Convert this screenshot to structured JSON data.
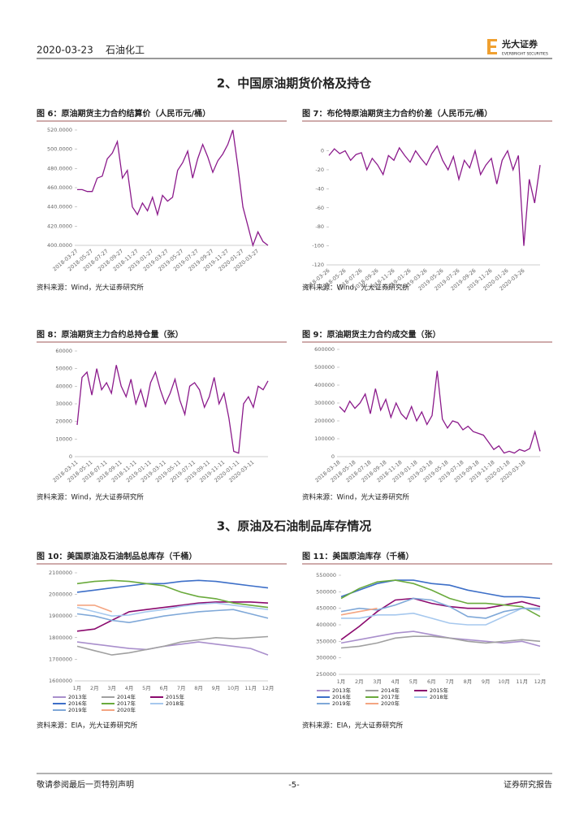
{
  "header": {
    "date": "2020-03-23",
    "sector": "石油化工",
    "brand": "光大证券",
    "brand_en": "EVERBRIGHT SECURITIES"
  },
  "sections": [
    "2、中国原油期货价格及持仓",
    "3、原油及石油制品库存情况"
  ],
  "chart_data": [
    {
      "type": "line",
      "title": "图 6：原油期货主力合约结算价（人民币元/桶）",
      "source": "资料来源：Wind，光大证券研究所",
      "color": "#8b1a8b",
      "categories": [
        "2018-03-27",
        null,
        null,
        "2018-05-27",
        null,
        null,
        "2018-07-27",
        null,
        null,
        "2018-09-27",
        null,
        null,
        "2018-11-27",
        null,
        null,
        "2019-01-27",
        null,
        null,
        "2019-03-27",
        null,
        null,
        "2019-05-27",
        null,
        null,
        "2019-07-27",
        null,
        null,
        "2019-09-27",
        null,
        null,
        "2019-11-27",
        null,
        null,
        "2020-01-27",
        null,
        null,
        "2020-03-27",
        null,
        null
      ],
      "values": [
        458,
        458,
        456,
        456,
        470,
        472,
        490,
        496,
        508,
        470,
        478,
        440,
        432,
        444,
        436,
        450,
        432,
        452,
        446,
        450,
        478,
        486,
        498,
        470,
        490,
        505,
        492,
        476,
        488,
        495,
        505,
        520,
        482,
        440,
        420,
        400,
        414,
        404,
        400
      ],
      "ylim": [
        400,
        520
      ],
      "yticks": [
        {
          "value": 400,
          "label": "400.0000"
        },
        {
          "value": 420,
          "label": "420.0000"
        },
        {
          "value": 440,
          "label": "440.0000"
        },
        {
          "value": 460,
          "label": "460.0000"
        },
        {
          "value": 480,
          "label": "480.0000"
        },
        {
          "value": 500,
          "label": "500.0000"
        },
        {
          "value": 520,
          "label": "520.0000"
        }
      ]
    },
    {
      "type": "line",
      "title": "图 7：布伦特原油期货主力合约价差（人民币元/桶）",
      "source": "资料来源：Wind，光大证券研究所",
      "color": "#8b1a8b",
      "categories": [
        "2018-03-26",
        null,
        null,
        "2018-05-26",
        null,
        null,
        "2018-07-26",
        null,
        null,
        "2018-09-26",
        null,
        null,
        "2018-11-26",
        null,
        null,
        "2019-01-26",
        null,
        null,
        "2019-03-26",
        null,
        null,
        "2019-05-26",
        null,
        null,
        "2019-07-26",
        null,
        null,
        "2019-09-26",
        null,
        null,
        "2019-11-26",
        null,
        null,
        "2020-01-26",
        null,
        null,
        "2020-03-26",
        null,
        null,
        null
      ],
      "values": [
        -5,
        2,
        -3,
        0,
        -10,
        -4,
        -2,
        -20,
        -8,
        -15,
        -25,
        -5,
        -10,
        3,
        -5,
        -12,
        0,
        -8,
        -15,
        -3,
        5,
        -10,
        -20,
        -6,
        -30,
        -10,
        -18,
        0,
        -25,
        -15,
        -8,
        -35,
        -10,
        0,
        -20,
        -5,
        -100,
        -30,
        -55,
        -15
      ],
      "ylim": [
        -120,
        15
      ],
      "yticks": [
        -120,
        -100,
        -80,
        -60,
        -40,
        -20,
        0
      ]
    },
    {
      "type": "line",
      "title": "图 8：原油期货主力合约总持仓量（张）",
      "source": "资料来源：Wind，光大证券研究所",
      "color": "#8b1a8b",
      "categories": [
        "2018-03-11",
        null,
        null,
        "2018-05-11",
        null,
        null,
        "2018-07-11",
        null,
        null,
        "2018-09-11",
        null,
        null,
        "2018-11-11",
        null,
        null,
        "2019-01-11",
        null,
        null,
        "2019-03-11",
        null,
        null,
        "2019-05-11",
        null,
        null,
        "2019-07-11",
        null,
        null,
        "2019-09-11",
        null,
        null,
        "2019-11-11",
        null,
        null,
        "2020-01-11",
        null,
        null,
        "2020-03-11",
        null,
        null,
        null
      ],
      "values": [
        18000,
        45000,
        48000,
        35000,
        50000,
        38000,
        42000,
        36000,
        52000,
        40000,
        34000,
        44000,
        30000,
        38000,
        28000,
        42000,
        48000,
        38000,
        30000,
        36000,
        44000,
        32000,
        24000,
        40000,
        42000,
        38000,
        28000,
        34000,
        45000,
        30000,
        36000,
        22000,
        3000,
        2000,
        30000,
        34000,
        28000,
        40000,
        38000,
        43000
      ],
      "ylim": [
        0,
        60000
      ],
      "yticks": [
        0,
        10000,
        20000,
        30000,
        40000,
        50000,
        60000
      ]
    },
    {
      "type": "line",
      "title": "图 9：原油期货主力合约成交量（张）",
      "source": "资料来源：Wind，光大证券研究所",
      "color": "#8b1a8b",
      "categories": [
        "2018-03-18",
        null,
        null,
        "2018-05-18",
        null,
        null,
        "2018-07-18",
        null,
        null,
        "2018-09-18",
        null,
        null,
        "2018-11-18",
        null,
        null,
        "2019-01-18",
        null,
        null,
        "2019-03-18",
        null,
        null,
        "2019-05-18",
        null,
        null,
        "2019-07-18",
        null,
        null,
        "2019-09-18",
        null,
        null,
        "2019-11-18",
        null,
        null,
        "2020-01-18",
        null,
        null,
        "2020-03-18",
        null,
        null,
        null
      ],
      "values": [
        280000,
        250000,
        310000,
        270000,
        300000,
        350000,
        240000,
        380000,
        260000,
        320000,
        220000,
        300000,
        240000,
        210000,
        280000,
        200000,
        250000,
        180000,
        230000,
        480000,
        210000,
        160000,
        200000,
        190000,
        150000,
        170000,
        140000,
        130000,
        120000,
        80000,
        40000,
        60000,
        20000,
        30000,
        20000,
        40000,
        30000,
        45000,
        140000,
        30000
      ],
      "ylim": [
        0,
        600000
      ],
      "yticks": [
        0,
        100000,
        200000,
        300000,
        400000,
        500000,
        600000
      ]
    },
    {
      "type": "line",
      "title": "图 10：美国原油及石油制品总库存（千桶）",
      "source": "资料来源：EIA，光大证券研究所",
      "legend": "bottom",
      "categories": [
        "1月",
        "2月",
        "3月",
        "4月",
        "5月",
        "6月",
        "7月",
        "8月",
        "9月",
        "10月",
        "11月",
        "12月"
      ],
      "series": [
        {
          "name": "2013年",
          "color": "#a98fcc",
          "values": [
            1780000,
            1770000,
            1760000,
            1750000,
            1745000,
            1760000,
            1770000,
            1780000,
            1770000,
            1760000,
            1750000,
            1720000
          ]
        },
        {
          "name": "2014年",
          "color": "#a0a0a0",
          "values": [
            1760000,
            1740000,
            1720000,
            1730000,
            1745000,
            1760000,
            1780000,
            1790000,
            1800000,
            1795000,
            1800000,
            1805000
          ]
        },
        {
          "name": "2015年",
          "color": "#8b0a6e",
          "values": [
            1830000,
            1840000,
            1880000,
            1920000,
            1930000,
            1940000,
            1950000,
            1960000,
            1965000,
            1965000,
            1965000,
            1960000
          ]
        },
        {
          "name": "2016年",
          "color": "#3d6fc8",
          "values": [
            2010000,
            2020000,
            2030000,
            2040000,
            2050000,
            2050000,
            2060000,
            2065000,
            2060000,
            2050000,
            2040000,
            2030000
          ]
        },
        {
          "name": "2017年",
          "color": "#6aaa3c",
          "values": [
            2050000,
            2060000,
            2065000,
            2060000,
            2050000,
            2040000,
            2010000,
            1990000,
            1980000,
            1960000,
            1950000,
            1940000
          ]
        },
        {
          "name": "2018年",
          "color": "#a6c8ee",
          "values": [
            1940000,
            1920000,
            1900000,
            1905000,
            1920000,
            1930000,
            1945000,
            1955000,
            1960000,
            1950000,
            1940000,
            1930000
          ]
        },
        {
          "name": "2019年",
          "color": "#7fa8d8",
          "values": [
            1910000,
            1900000,
            1880000,
            1870000,
            1885000,
            1900000,
            1910000,
            1920000,
            1925000,
            1930000,
            1910000,
            1890000
          ]
        },
        {
          "name": "2020年",
          "color": "#f4a582",
          "values": [
            1950000,
            1950000,
            1920000,
            null,
            null,
            null,
            null,
            null,
            null,
            null,
            null,
            null
          ]
        }
      ],
      "ylim": [
        1600000,
        2100000
      ],
      "yticks": [
        1600000,
        1700000,
        1800000,
        1900000,
        2000000,
        2100000
      ]
    },
    {
      "type": "line",
      "title": "图 11：美国原油库存（千桶）",
      "source": "资料来源：EIA，光大证券研究所",
      "legend": "bottom",
      "categories": [
        "1月",
        "2月",
        "3月",
        "4月",
        "5月",
        "6月",
        "7月",
        "8月",
        "9月",
        "10月",
        "11月",
        "12月"
      ],
      "series": [
        {
          "name": "2013年",
          "color": "#a98fcc",
          "values": [
            345000,
            355000,
            365000,
            375000,
            380000,
            370000,
            360000,
            355000,
            350000,
            345000,
            350000,
            335000
          ]
        },
        {
          "name": "2014年",
          "color": "#a0a0a0",
          "values": [
            330000,
            335000,
            345000,
            360000,
            365000,
            365000,
            360000,
            350000,
            345000,
            350000,
            355000,
            350000
          ]
        },
        {
          "name": "2015年",
          "color": "#8b0a6e",
          "values": [
            355000,
            395000,
            440000,
            475000,
            480000,
            465000,
            455000,
            450000,
            450000,
            460000,
            470000,
            455000
          ]
        },
        {
          "name": "2016年",
          "color": "#3d6fc8",
          "values": [
            485000,
            505000,
            525000,
            535000,
            535000,
            525000,
            520000,
            505000,
            495000,
            485000,
            485000,
            480000
          ]
        },
        {
          "name": "2017年",
          "color": "#6aaa3c",
          "values": [
            480000,
            510000,
            530000,
            535000,
            525000,
            505000,
            480000,
            465000,
            465000,
            460000,
            455000,
            425000
          ]
        },
        {
          "name": "2018年",
          "color": "#a6c8ee",
          "values": [
            420000,
            420000,
            430000,
            430000,
            435000,
            420000,
            405000,
            400000,
            400000,
            425000,
            450000,
            445000
          ]
        },
        {
          "name": "2019年",
          "color": "#7fa8d8",
          "values": [
            440000,
            450000,
            445000,
            460000,
            480000,
            475000,
            455000,
            425000,
            420000,
            440000,
            450000,
            450000
          ]
        },
        {
          "name": "2020年",
          "color": "#f4a582",
          "values": [
            430000,
            440000,
            450000,
            null,
            null,
            null,
            null,
            null,
            null,
            null,
            null,
            null
          ]
        }
      ],
      "ylim": [
        250000,
        550000
      ],
      "yticks": [
        250000,
        300000,
        350000,
        400000,
        450000,
        500000,
        550000
      ]
    }
  ],
  "footer": {
    "left": "敬请参阅最后一页特别声明",
    "page": "-5-",
    "right": "证券研究报告"
  }
}
